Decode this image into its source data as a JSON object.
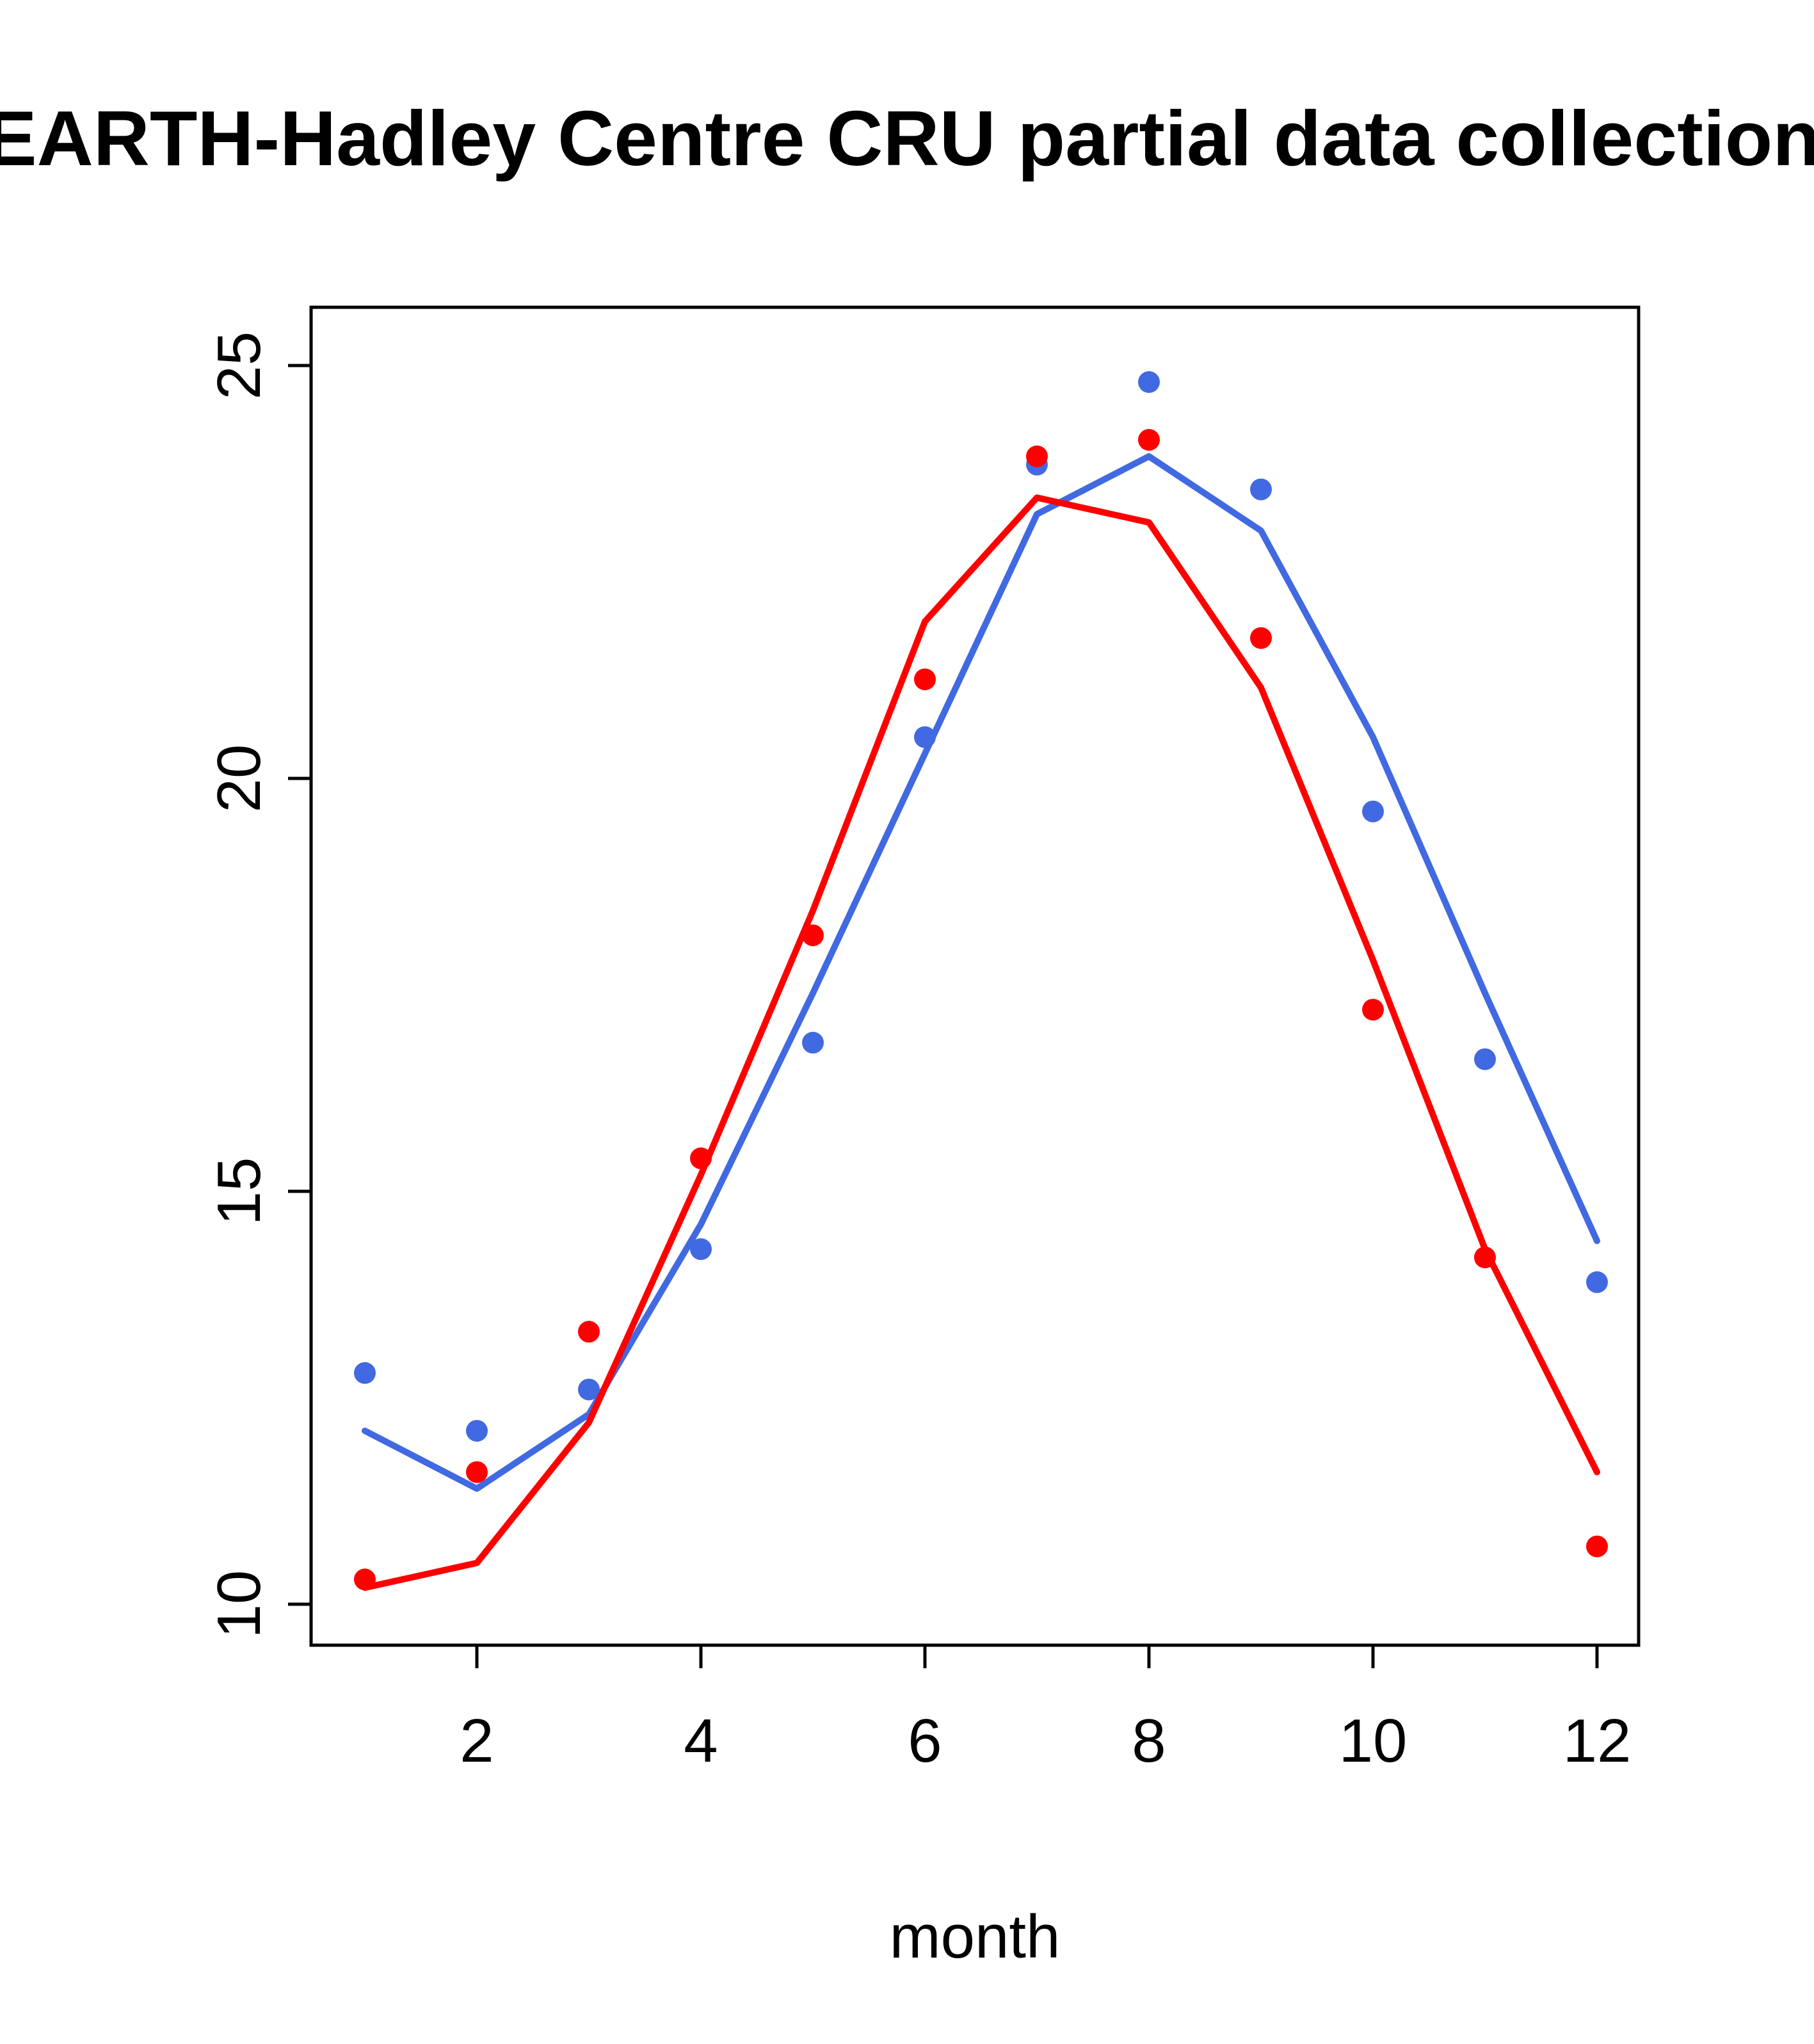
{
  "chart_data": {
    "type": "line",
    "title": "EARTH-Hadley Centre  CRU partial data collection",
    "xlabel": "month",
    "ylabel": "",
    "x": [
      1,
      2,
      3,
      4,
      5,
      6,
      7,
      8,
      9,
      10,
      11,
      12
    ],
    "x_ticks": [
      2,
      4,
      6,
      8,
      10,
      12
    ],
    "y_ticks": [
      10,
      15,
      20,
      25
    ],
    "xlim": [
      0.55,
      12.45
    ],
    "ylim": [
      9.7,
      25.3
    ],
    "grid": false,
    "legend": "none",
    "series": [
      {
        "name": "blue-line",
        "style": "line",
        "color": "#4169E1",
        "values": [
          12.1,
          11.4,
          12.3,
          14.6,
          17.4,
          20.3,
          23.2,
          23.9,
          23.0,
          20.5,
          17.4,
          14.4
        ]
      },
      {
        "name": "blue-points",
        "style": "scatter",
        "color": "#4169E1",
        "values": [
          12.8,
          12.1,
          12.6,
          14.3,
          16.8,
          20.5,
          23.8,
          24.8,
          23.5,
          19.6,
          16.6,
          13.9
        ]
      },
      {
        "name": "red-line",
        "style": "line",
        "color": "#FF0000",
        "values": [
          10.2,
          10.5,
          12.2,
          15.2,
          18.4,
          21.9,
          23.4,
          23.1,
          21.1,
          17.8,
          14.3,
          11.6
        ]
      },
      {
        "name": "red-points",
        "style": "scatter",
        "color": "#FF0000",
        "values": [
          10.3,
          11.6,
          13.3,
          15.4,
          18.1,
          21.2,
          23.9,
          24.1,
          21.7,
          17.2,
          14.2,
          10.7
        ]
      }
    ]
  }
}
